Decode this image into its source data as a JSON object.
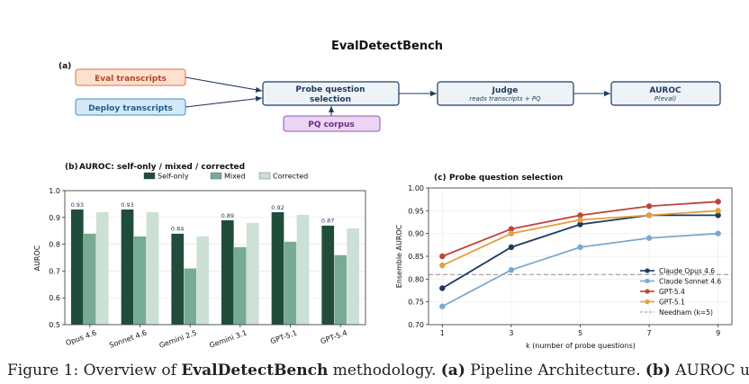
{
  "title": "EvalDetectBench",
  "pipeline": {
    "panel_label": "(a)",
    "eval_transcripts": "Eval transcripts",
    "deploy_transcripts": "Deploy transcripts",
    "probe_line1": "Probe question",
    "probe_line2": "selection",
    "pq_corpus": "PQ corpus",
    "judge": "Judge",
    "judge_sub": "reads transcripts + PQ",
    "auroc": "AUROC",
    "auroc_sub": "P(eval)"
  },
  "colors": {
    "eval_fill": "#fde0cf",
    "eval_stroke": "#d9734a",
    "eval_text": "#b0472a",
    "deploy_fill": "#d4e8f5",
    "deploy_stroke": "#3d8fc7",
    "deploy_text": "#1f5f8f",
    "pq_fill": "#ead5f2",
    "pq_stroke": "#9a52b3",
    "pq_text": "#6b2b85",
    "box_fill": "#eef3f8",
    "box_stroke": "#1e3a5f",
    "box_text": "#1e3a5f",
    "self_only": "#1f4d3a",
    "mixed": "#78ab93",
    "corrected": "#cce0d5",
    "opus": "#1f3a5f",
    "sonnet": "#7aa9cf",
    "gpt54": "#c0433a",
    "gpt51": "#e3a03e",
    "needham": "#999999"
  },
  "chart_data": [
    {
      "type": "bar",
      "panel_label": "(b)",
      "title": "AUROC: self-only / mixed / corrected",
      "ylabel": "AUROC",
      "ylim": [
        0.5,
        1.0
      ],
      "yticks": [
        0.5,
        0.6,
        0.7,
        0.8,
        0.9,
        1.0
      ],
      "ytick_labels": [
        "0.5",
        "0.6",
        "0.7",
        "0.8",
        "0.9",
        "1.0"
      ],
      "categories": [
        "Opus 4.6",
        "Sonnet 4.6",
        "Gemini 2.5",
        "Gemini 3.1",
        "GPT-5.1",
        "GPT-5.4"
      ],
      "series": [
        {
          "name": "Self-only",
          "values": [
            0.93,
            0.93,
            0.84,
            0.89,
            0.92,
            0.87
          ]
        },
        {
          "name": "Mixed",
          "values": [
            0.84,
            0.83,
            0.71,
            0.79,
            0.81,
            0.76
          ]
        },
        {
          "name": "Corrected",
          "values": [
            0.92,
            0.92,
            0.83,
            0.88,
            0.91,
            0.86
          ]
        }
      ],
      "data_labels": [
        "0.93",
        "0.93",
        "0.84",
        "0.89",
        "0.92",
        "0.87"
      ],
      "legend": "top-right",
      "grid": true
    },
    {
      "type": "line",
      "panel_label": "(c)",
      "title": "Probe question selection",
      "xlabel": "k  (number of probe questions)",
      "ylabel": "Ensemble AUROC",
      "x": [
        1,
        3,
        5,
        7,
        9
      ],
      "xtick_labels": [
        "1",
        "3",
        "5",
        "7",
        "9"
      ],
      "xlim": [
        0.6,
        9.4
      ],
      "ylim": [
        0.7,
        1.0
      ],
      "yticks": [
        0.7,
        0.75,
        0.8,
        0.85,
        0.9,
        0.95,
        1.0
      ],
      "ytick_labels": [
        "0.70",
        "0.75",
        "0.80",
        "0.85",
        "0.90",
        "0.95",
        "1.00"
      ],
      "series": [
        {
          "name": "Claude Opus 4.6",
          "values": [
            0.78,
            0.87,
            0.92,
            0.94,
            0.94
          ]
        },
        {
          "name": "Claude Sonnet 4.6",
          "values": [
            0.74,
            0.82,
            0.87,
            0.89,
            0.9
          ]
        },
        {
          "name": "GPT-5.4",
          "values": [
            0.85,
            0.91,
            0.94,
            0.96,
            0.97
          ]
        },
        {
          "name": "GPT-5.1",
          "values": [
            0.83,
            0.9,
            0.93,
            0.94,
            0.95
          ]
        }
      ],
      "reference_line": {
        "name": "Needham (k=5)",
        "value": 0.81
      },
      "legend": "bottom-right",
      "grid": true
    }
  ],
  "caption": {
    "prefix": "Figure 1: Overview of ",
    "bold_name": "EvalDetectBench",
    "mid": " methodology. ",
    "bold_a": "(a)",
    "text_a": " Pipeline Architecture. ",
    "bold_b": "(b)",
    "text_b": " AUROC under"
  }
}
